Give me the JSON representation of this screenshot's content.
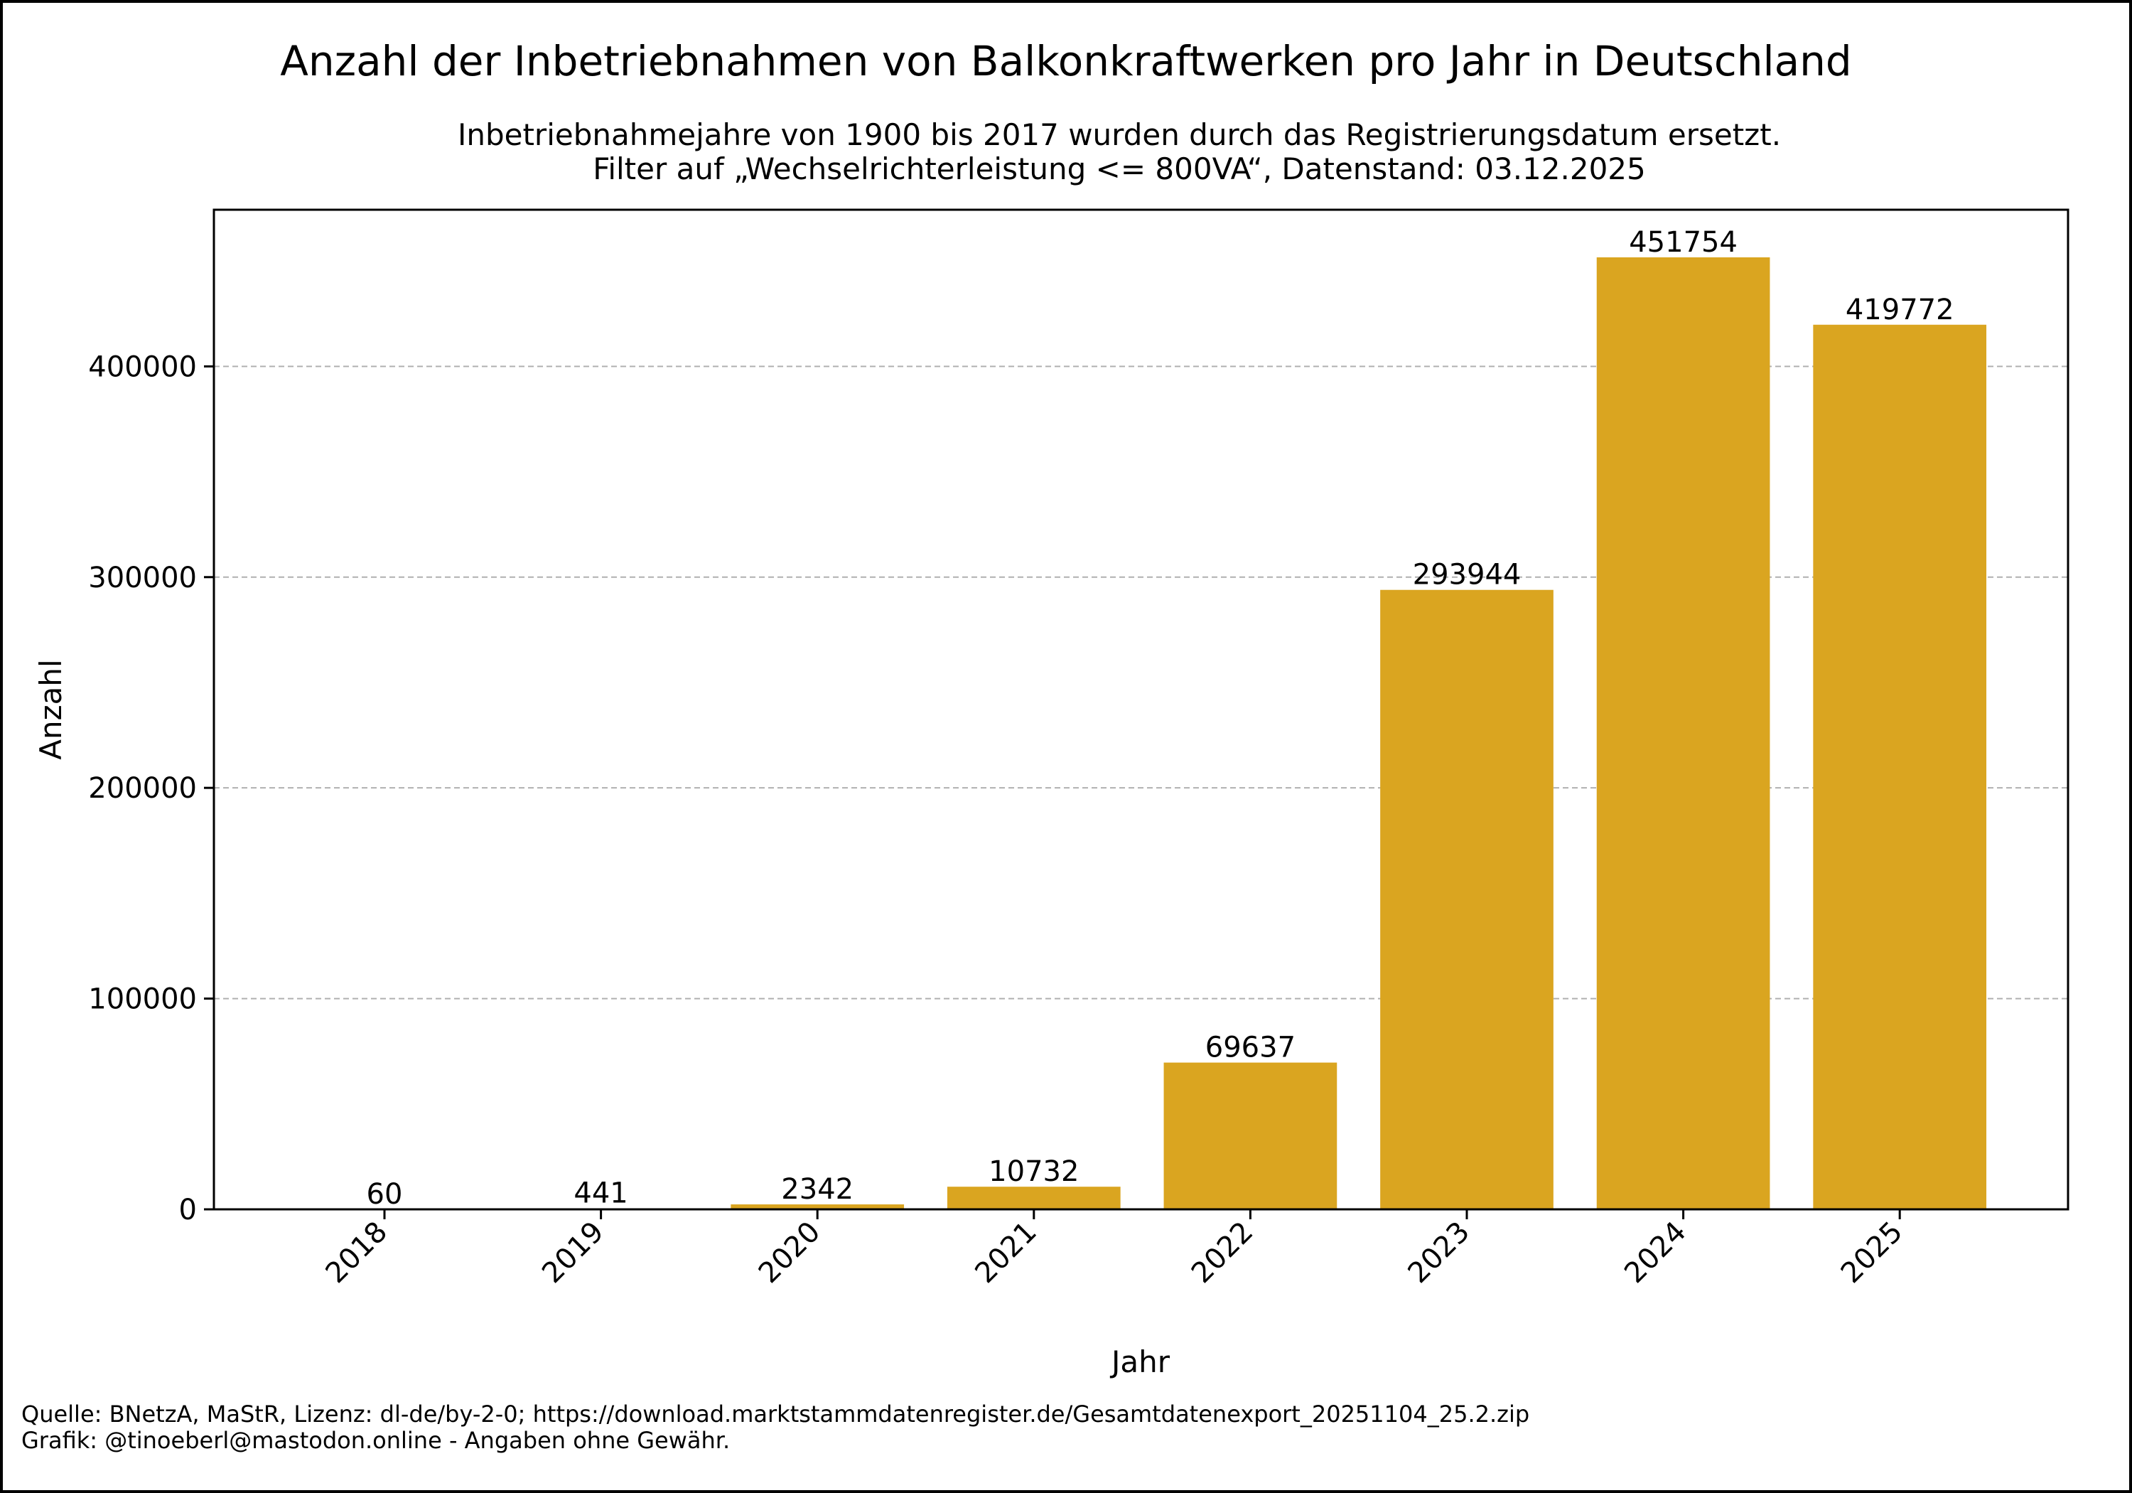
{
  "chart_data": {
    "type": "bar",
    "title": "Anzahl der Inbetriebnahmen von Balkonkraftwerken pro Jahr in Deutschland",
    "subtitle_lines": [
      "Inbetriebnahmejahre von 1900 bis 2017 wurden durch das Registrierungsdatum ersetzt.",
      "Filter auf „Wechselrichterleistung <= 800VA“, Datenstand: 03.12.2025"
    ],
    "xlabel": "Jahr",
    "ylabel": "Anzahl",
    "categories": [
      "2018",
      "2019",
      "2020",
      "2021",
      "2022",
      "2023",
      "2024",
      "2025"
    ],
    "values": [
      60,
      441,
      2342,
      10732,
      69637,
      293944,
      451754,
      419772
    ],
    "data_labels": [
      "60",
      "441",
      "2342",
      "10732",
      "69637",
      "293944",
      "451754",
      "419772"
    ],
    "ylim": [
      0,
      474341.7
    ],
    "yticks": [
      0,
      100000,
      200000,
      300000,
      400000
    ],
    "ytick_labels": [
      "0",
      "100000",
      "200000",
      "300000",
      "400000"
    ],
    "grid": "horizontal-dashed",
    "bar_color": "#DAA520",
    "grid_color": "#b0b0b0"
  },
  "footer_lines": [
    "Quelle: BNetzA, MaStR, Lizenz: dl-de/by-2-0; https://download.marktstammdatenregister.de/Gesamtdatenexport_20251104_25.2.zip",
    "Grafik: @tinoeberl@mastodon.online - Angaben ohne Gewähr."
  ]
}
